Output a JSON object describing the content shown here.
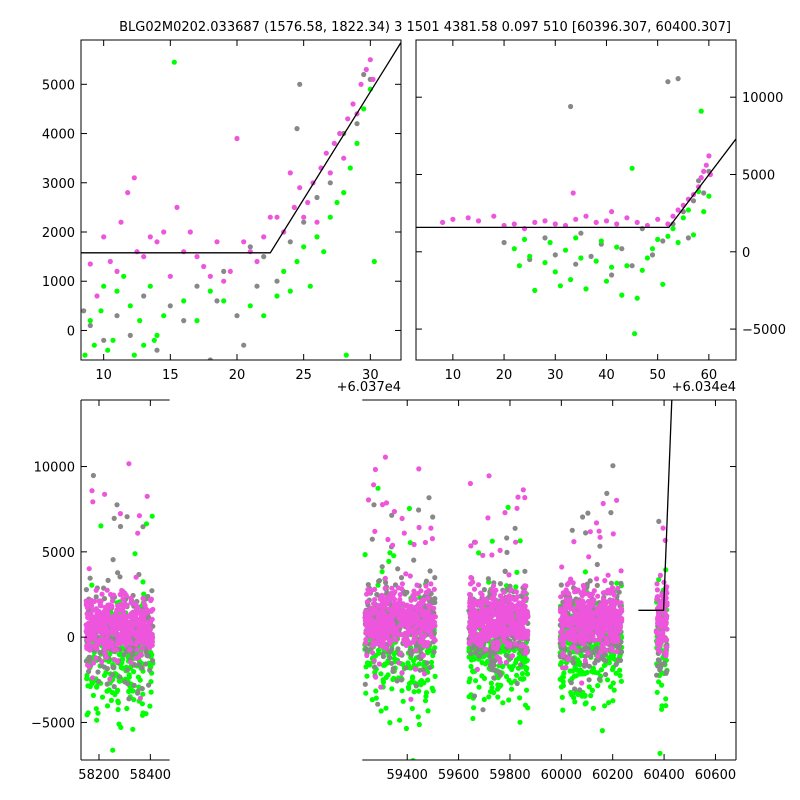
{
  "title": "BLG02M0202.033687 (1576.58, 1822.34)   3 1501 4381.58 0.097 510 [60396.307, 60400.307]",
  "colors": {
    "green": "#00ff00",
    "magenta": "#ee55dd",
    "gray": "#888888",
    "model": "#000000"
  },
  "chart_data": [
    {
      "id": "top-left",
      "type": "scatter",
      "xlim": [
        8.3,
        32.3
      ],
      "ylim": [
        -600,
        5900
      ],
      "x_offset_label": "+6.037e4",
      "xticks": [
        10,
        15,
        20,
        25,
        30
      ],
      "yticks": [
        0,
        1000,
        2000,
        3000,
        4000,
        5000
      ],
      "y_axis_side": "left",
      "model_line": {
        "x": [
          8.3,
          22.5,
          32.3
        ],
        "y": [
          1576.58,
          1576.58,
          5850
        ]
      },
      "series": [
        {
          "color": "magenta",
          "points": [
            [
              9,
              1350
            ],
            [
              9.5,
              700
            ],
            [
              10,
              1900
            ],
            [
              10.5,
              1400
            ],
            [
              11,
              1200
            ],
            [
              11.3,
              2200
            ],
            [
              11.8,
              2800
            ],
            [
              12.3,
              3100
            ],
            [
              12.5,
              1600
            ],
            [
              13,
              1500
            ],
            [
              13.5,
              1900
            ],
            [
              14,
              1800
            ],
            [
              14.5,
              2000
            ],
            [
              15,
              1100
            ],
            [
              15.5,
              2500
            ],
            [
              16,
              1600
            ],
            [
              16.5,
              2000
            ],
            [
              17,
              1500
            ],
            [
              17.5,
              1300
            ],
            [
              18,
              1100
            ],
            [
              18.5,
              1800
            ],
            [
              19,
              1000
            ],
            [
              19.5,
              1200
            ],
            [
              20,
              3900
            ],
            [
              20.5,
              1800
            ],
            [
              21,
              1600
            ],
            [
              21.5,
              1400
            ],
            [
              22,
              1900
            ],
            [
              22.5,
              2300
            ],
            [
              23,
              2300
            ],
            [
              23.5,
              2000
            ],
            [
              24,
              3200
            ],
            [
              24.3,
              2500
            ],
            [
              24.7,
              2900
            ],
            [
              25,
              2300
            ],
            [
              25.3,
              2600
            ],
            [
              25.7,
              3000
            ],
            [
              26,
              2200
            ],
            [
              26.3,
              3300
            ],
            [
              26.7,
              3600
            ],
            [
              27,
              3200
            ],
            [
              27.3,
              3800
            ],
            [
              27.7,
              4000
            ],
            [
              28,
              3500
            ],
            [
              28.3,
              4300
            ],
            [
              28.7,
              4600
            ],
            [
              29,
              4400
            ],
            [
              29.3,
              5000
            ],
            [
              29.7,
              5300
            ],
            [
              30,
              5500
            ],
            [
              30.2,
              5100
            ]
          ]
        },
        {
          "color": "green",
          "points": [
            [
              8.6,
              -500
            ],
            [
              9,
              200
            ],
            [
              9.3,
              -300
            ],
            [
              9.8,
              400
            ],
            [
              10,
              900
            ],
            [
              10.3,
              -400
            ],
            [
              10.7,
              -200
            ],
            [
              11,
              800
            ],
            [
              11.5,
              1100
            ],
            [
              12,
              500
            ],
            [
              12.3,
              -500
            ],
            [
              12.7,
              200
            ],
            [
              13,
              -300
            ],
            [
              13.5,
              900
            ],
            [
              13.8,
              -200
            ],
            [
              14,
              -100
            ],
            [
              14.5,
              300
            ],
            [
              15.3,
              5450
            ],
            [
              16,
              600
            ],
            [
              17,
              200
            ],
            [
              18,
              800
            ],
            [
              19,
              600
            ],
            [
              21,
              500
            ],
            [
              22,
              300
            ],
            [
              23,
              700
            ],
            [
              23.5,
              1200
            ],
            [
              24,
              800
            ],
            [
              24.5,
              1400
            ],
            [
              25,
              1700
            ],
            [
              25.5,
              900
            ],
            [
              26,
              1900
            ],
            [
              26.5,
              1600
            ],
            [
              27,
              2300
            ],
            [
              27.5,
              2600
            ],
            [
              28,
              2800
            ],
            [
              28.2,
              -500
            ],
            [
              28.5,
              3300
            ],
            [
              29,
              3800
            ],
            [
              29.5,
              4500
            ],
            [
              30,
              4900
            ],
            [
              30.3,
              1400
            ]
          ]
        },
        {
          "color": "gray",
          "points": [
            [
              8.5,
              400
            ],
            [
              9,
              100
            ],
            [
              10,
              -200
            ],
            [
              11,
              300
            ],
            [
              12,
              -100
            ],
            [
              13,
              700
            ],
            [
              14,
              -400
            ],
            [
              15,
              500
            ],
            [
              16,
              200
            ],
            [
              17,
              900
            ],
            [
              18,
              -600
            ],
            [
              18.5,
              600
            ],
            [
              19,
              1200
            ],
            [
              20,
              300
            ],
            [
              20.5,
              -300
            ],
            [
              21,
              1700
            ],
            [
              21.5,
              900
            ],
            [
              22,
              1500
            ],
            [
              23,
              1000
            ],
            [
              24,
              1800
            ],
            [
              24.5,
              4100
            ],
            [
              24.7,
              5000
            ],
            [
              25,
              2200
            ],
            [
              26,
              2700
            ],
            [
              27,
              3000
            ],
            [
              28,
              4000
            ],
            [
              29,
              4200
            ],
            [
              29.5,
              5200
            ],
            [
              30,
              5100
            ]
          ]
        }
      ]
    },
    {
      "id": "top-right",
      "type": "scatter",
      "xlim": [
        2.8,
        65.3
      ],
      "ylim": [
        -7000,
        13700
      ],
      "x_offset_label": "+6.034e4",
      "xticks": [
        10,
        20,
        30,
        40,
        50,
        60
      ],
      "yticks": [
        -5000,
        0,
        5000,
        10000
      ],
      "y_axis_side": "right",
      "model_line": {
        "x": [
          2.8,
          52.2,
          65.3
        ],
        "y": [
          1576.58,
          1576.58,
          7300
        ]
      },
      "series": [
        {
          "color": "magenta",
          "points": [
            [
              8,
              1900
            ],
            [
              10,
              2100
            ],
            [
              13,
              2200
            ],
            [
              15,
              2000
            ],
            [
              18,
              2300
            ],
            [
              20,
              1700
            ],
            [
              22,
              1800
            ],
            [
              24,
              1500
            ],
            [
              26,
              1900
            ],
            [
              28,
              2000
            ],
            [
              30,
              1800
            ],
            [
              32,
              1700
            ],
            [
              33.5,
              3800
            ],
            [
              34,
              2100
            ],
            [
              36,
              2300
            ],
            [
              38,
              1900
            ],
            [
              40,
              2000
            ],
            [
              41,
              2600
            ],
            [
              42,
              1800
            ],
            [
              44,
              2200
            ],
            [
              46,
              1900
            ],
            [
              48,
              1700
            ],
            [
              50,
              2100
            ],
            [
              52,
              1800
            ],
            [
              53,
              2300
            ],
            [
              54,
              2700
            ],
            [
              55,
              3000
            ],
            [
              56,
              3400
            ],
            [
              57,
              3700
            ],
            [
              58,
              4200
            ],
            [
              58.5,
              4800
            ],
            [
              59,
              5200
            ],
            [
              59.5,
              5600
            ],
            [
              60,
              6200
            ],
            [
              60.3,
              5000
            ]
          ]
        },
        {
          "color": "green",
          "points": [
            [
              22,
              200
            ],
            [
              23,
              -900
            ],
            [
              24,
              800
            ],
            [
              25,
              -300
            ],
            [
              26,
              -2500
            ],
            [
              28,
              -700
            ],
            [
              29,
              600
            ],
            [
              30,
              -1300
            ],
            [
              31,
              -2200
            ],
            [
              32,
              100
            ],
            [
              33,
              -1800
            ],
            [
              34,
              900
            ],
            [
              35,
              -400
            ],
            [
              36,
              -2400
            ],
            [
              38,
              -600
            ],
            [
              39,
              700
            ],
            [
              40,
              -1900
            ],
            [
              41,
              -1000
            ],
            [
              42,
              300
            ],
            [
              43,
              -2800
            ],
            [
              44,
              -900
            ],
            [
              45,
              5400
            ],
            [
              45.5,
              -5300
            ],
            [
              46,
              -3000
            ],
            [
              47,
              -1200
            ],
            [
              48,
              -400
            ],
            [
              49,
              200
            ],
            [
              50,
              800
            ],
            [
              51,
              -2100
            ],
            [
              52,
              1000
            ],
            [
              53,
              1500
            ],
            [
              54,
              600
            ],
            [
              55,
              2200
            ],
            [
              56,
              2700
            ],
            [
              57,
              1100
            ],
            [
              58,
              3900
            ],
            [
              58.5,
              9100
            ],
            [
              59,
              2600
            ],
            [
              60,
              3600
            ]
          ]
        },
        {
          "color": "gray",
          "points": [
            [
              20,
              600
            ],
            [
              25,
              -500
            ],
            [
              28,
              900
            ],
            [
              30,
              -200
            ],
            [
              33,
              9400
            ],
            [
              34,
              -800
            ],
            [
              35,
              1200
            ],
            [
              37,
              -300
            ],
            [
              39,
              500
            ],
            [
              41,
              -1500
            ],
            [
              43,
              200
            ],
            [
              45,
              -900
            ],
            [
              47,
              1500
            ],
            [
              49,
              -200
            ],
            [
              51,
              700
            ],
            [
              52,
              11000
            ],
            [
              53,
              1800
            ],
            [
              54,
              11200
            ],
            [
              55,
              2600
            ],
            [
              56,
              900
            ],
            [
              57,
              3300
            ],
            [
              58,
              4600
            ],
            [
              59,
              3800
            ],
            [
              60,
              5200
            ]
          ]
        }
      ]
    },
    {
      "id": "bottom",
      "type": "scatter",
      "xlim": [
        58130,
        60680
      ],
      "ylim": [
        -7200,
        13900
      ],
      "xticks": [
        58200,
        58400,
        59400,
        59600,
        59800,
        60000,
        60200,
        60400,
        60600
      ],
      "yticks": [
        -5000,
        0,
        5000,
        10000
      ],
      "y_axis_side": "left",
      "x_break": [
        58475,
        59225
      ],
      "model_line": {
        "x": [
          60300,
          60398,
          60430
        ],
        "y": [
          1576.58,
          1576.58,
          13900
        ]
      },
      "seasons": [
        {
          "start": 58150,
          "end": 58410
        },
        {
          "start": 59235,
          "end": 59510
        },
        {
          "start": 59640,
          "end": 59870
        },
        {
          "start": 59995,
          "end": 60235
        },
        {
          "start": 60370,
          "end": 60412
        }
      ]
    }
  ]
}
